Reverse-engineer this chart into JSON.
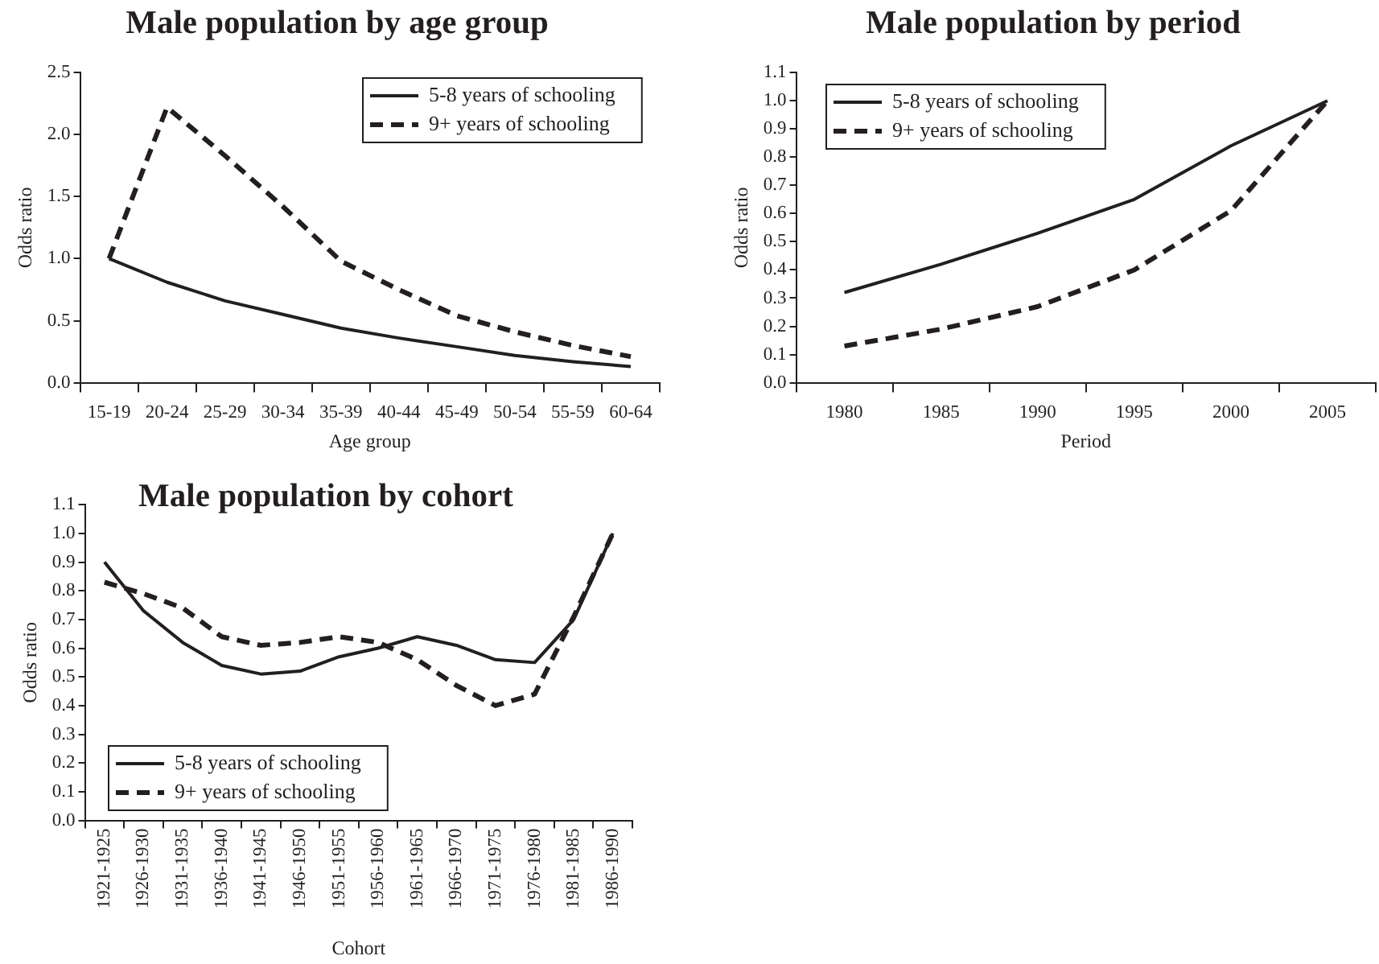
{
  "chart_data": [
    {
      "type": "line",
      "title": "Male population by age group",
      "xlabel": "Age group",
      "ylabel": "Odds ratio",
      "categories": [
        "15-19",
        "20-24",
        "25-29",
        "30-34",
        "35-39",
        "40-44",
        "45-49",
        "50-54",
        "55-59",
        "60-64"
      ],
      "series": [
        {
          "name": "5-8 years of schooling",
          "color": "#231f20",
          "line_style": "solid",
          "values": [
            1.0,
            0.81,
            0.66,
            0.55,
            0.44,
            0.36,
            0.29,
            0.22,
            0.17,
            0.13
          ]
        },
        {
          "name": "9+ years of schooling",
          "color": "#231f20",
          "line_style": "dashed",
          "values": [
            1.0,
            2.22,
            1.83,
            1.42,
            0.98,
            0.75,
            0.54,
            0.41,
            0.3,
            0.21
          ]
        }
      ],
      "ylim": [
        0,
        2.5
      ],
      "yticks": [
        {
          "value": 0,
          "label": "0.0"
        },
        0.5,
        {
          "value": 1,
          "label": "1.0"
        },
        1.5,
        {
          "value": 2,
          "label": "2.0"
        },
        2.5
      ],
      "legend": "top right",
      "marker": "none"
    },
    {
      "type": "line",
      "title": "Male population by period",
      "xlabel": "Period",
      "ylabel": "Odds ratio",
      "categories": [
        "1980",
        "1985",
        "1990",
        "1995",
        "2000",
        "2005"
      ],
      "series": [
        {
          "name": "5-8 years of schooling",
          "color": "#231f20",
          "line_style": "solid",
          "values": [
            0.32,
            0.42,
            0.53,
            0.65,
            0.84,
            1.0
          ]
        },
        {
          "name": "9+ years of schooling",
          "color": "#231f20",
          "line_style": "dashed",
          "values": [
            0.13,
            0.19,
            0.27,
            0.4,
            0.61,
            1.0
          ]
        }
      ],
      "ylim": [
        0,
        1.1
      ],
      "yticks": [
        {
          "value": 0,
          "label": "0.0"
        },
        0.1,
        0.2,
        0.3,
        0.4,
        0.5,
        0.6,
        0.7,
        0.8,
        0.9,
        {
          "value": 1,
          "label": "1.0"
        },
        1.1
      ],
      "legend": "top left",
      "marker": "none"
    },
    {
      "type": "line",
      "title": "Male population by cohort",
      "xlabel": "Cohort",
      "ylabel": "Odds ratio",
      "categories": [
        "1921-1925",
        "1926-1930",
        "1931-1935",
        "1936-1940",
        "1941-1945",
        "1946-1950",
        "1951-1955",
        "1956-1960",
        "1961-1965",
        "1966-1970",
        "1971-1975",
        "1976-1980",
        "1981-1985",
        "1986-1990"
      ],
      "series": [
        {
          "name": "5-8 years of schooling",
          "color": "#231f20",
          "line_style": "solid",
          "values": [
            0.9,
            0.73,
            0.62,
            0.54,
            0.51,
            0.52,
            0.57,
            0.6,
            0.64,
            0.61,
            0.56,
            0.55,
            0.7,
            1.0
          ]
        },
        {
          "name": "9+ years of schooling",
          "color": "#231f20",
          "line_style": "dashed",
          "values": [
            0.83,
            0.79,
            0.74,
            0.64,
            0.61,
            0.62,
            0.64,
            0.62,
            0.56,
            0.47,
            0.4,
            0.44,
            0.71,
            1.0
          ]
        }
      ],
      "ylim": [
        0,
        1.1
      ],
      "yticks": [
        {
          "value": 0,
          "label": "0.0"
        },
        0.1,
        0.2,
        0.3,
        0.4,
        0.5,
        0.6,
        0.7,
        0.8,
        0.9,
        {
          "value": 1,
          "label": "1.0"
        },
        1.1
      ],
      "legend": "bottom left",
      "marker": "none"
    }
  ]
}
